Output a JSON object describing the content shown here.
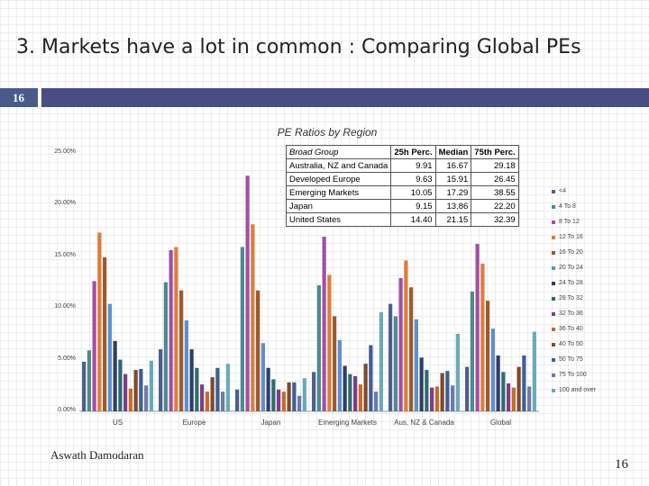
{
  "slide": {
    "title": "3. Markets have a lot in common : Comparing Global PEs",
    "section_number": "16",
    "author": "Aswath Damodaran",
    "page_number": "16"
  },
  "chart_data": {
    "type": "bar",
    "title": "PE Ratios by Region",
    "xlabel": "",
    "ylabel": "",
    "ylim": [
      0,
      25
    ],
    "yticks": [
      "0.00%",
      "5.00%",
      "10.00%",
      "15.00%",
      "20.00%",
      "25.00%"
    ],
    "ytick_values": [
      0,
      5,
      10,
      15,
      20,
      25
    ],
    "categories": [
      "US",
      "Europe",
      "Japan",
      "Emerging Markets",
      "Aus, NZ & Canada",
      "Global"
    ],
    "series": [
      {
        "name": "<4",
        "color": "#4f5d8c",
        "values": [
          4.8,
          6.0,
          2.1,
          3.8,
          10.4,
          4.3
        ]
      },
      {
        "name": "4 To 8",
        "color": "#4e8a8c",
        "values": [
          5.9,
          12.5,
          15.9,
          12.2,
          9.2,
          11.6
        ]
      },
      {
        "name": "8 To 12",
        "color": "#a24fa5",
        "values": [
          12.6,
          15.6,
          22.8,
          16.9,
          12.9,
          16.2
        ]
      },
      {
        "name": "12 To 16",
        "color": "#e07b39",
        "values": [
          17.3,
          15.9,
          18.1,
          13.2,
          14.6,
          14.3
        ]
      },
      {
        "name": "16 To 20",
        "color": "#9b5a2e",
        "values": [
          14.9,
          11.7,
          11.7,
          9.2,
          12.0,
          10.7
        ]
      },
      {
        "name": "20 To 24",
        "color": "#5c8fd0",
        "values": [
          10.4,
          8.8,
          6.6,
          6.9,
          8.9,
          8.0
        ]
      },
      {
        "name": "24 To 28",
        "color": "#2f3e66",
        "values": [
          6.8,
          6.0,
          4.2,
          4.4,
          5.2,
          5.4
        ]
      },
      {
        "name": "28 To 32",
        "color": "#2f6b6d",
        "values": [
          5.0,
          4.2,
          3.1,
          3.6,
          4.0,
          3.8
        ]
      },
      {
        "name": "32 To 36",
        "color": "#7a3d86",
        "values": [
          3.6,
          2.6,
          2.1,
          3.4,
          2.3,
          2.7
        ]
      },
      {
        "name": "36 To 40",
        "color": "#c46a2b",
        "values": [
          2.2,
          1.9,
          1.9,
          2.6,
          2.4,
          2.3
        ]
      },
      {
        "name": "40 To 50",
        "color": "#7d4a2a",
        "values": [
          4.0,
          3.3,
          2.8,
          4.6,
          3.7,
          4.3
        ]
      },
      {
        "name": "50 To 75",
        "color": "#3c5f96",
        "values": [
          4.1,
          4.2,
          2.8,
          6.4,
          3.9,
          5.4
        ]
      },
      {
        "name": "75 To 100",
        "color": "#6e7aa6",
        "values": [
          2.5,
          1.9,
          1.5,
          1.9,
          2.5,
          2.4
        ]
      },
      {
        "name": "100 and over",
        "color": "#6aaab8",
        "values": [
          4.9,
          4.6,
          3.2,
          9.6,
          7.5,
          7.7
        ]
      }
    ]
  },
  "pe_table": {
    "headers": [
      "Broad Group",
      "25h Perc.",
      "Median",
      "75th Perc."
    ],
    "rows": [
      [
        "Australia, NZ and Canada",
        "9.91",
        "16.67",
        "29.18"
      ],
      [
        "Developed Europe",
        "9.63",
        "15.91",
        "26.45"
      ],
      [
        "Emerging Markets",
        "10.05",
        "17.29",
        "38.55"
      ],
      [
        "Japan",
        "9.15",
        "13.86",
        "22.20"
      ],
      [
        "United States",
        "14.40",
        "21.15",
        "32.39"
      ]
    ]
  }
}
